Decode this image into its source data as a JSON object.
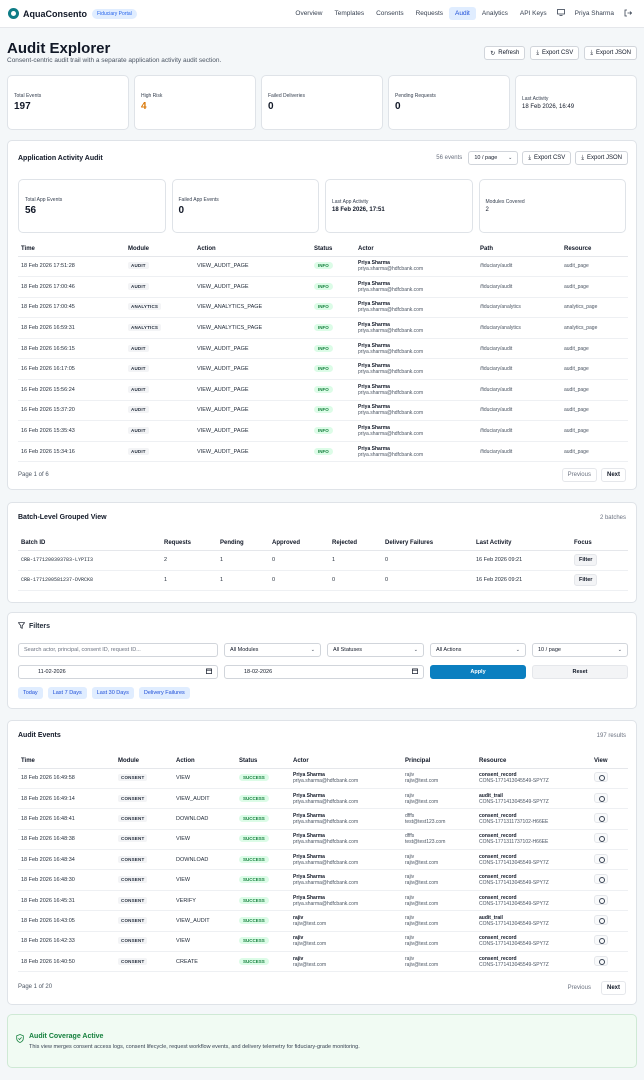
{
  "nav": {
    "brand": "AquaConsento",
    "portal_badge": "Fiduciary Portal",
    "links": [
      "Overview",
      "Templates",
      "Consents",
      "Requests",
      "Audit",
      "Analytics",
      "API Keys"
    ],
    "active": "Audit",
    "user": "Priya Sharma"
  },
  "header": {
    "title": "Audit Explorer",
    "subtitle": "Consent-centric audit trail with a separate application activity audit section.",
    "refresh": "Refresh",
    "export_csv": "Export CSV",
    "export_json": "Export JSON"
  },
  "stats": [
    {
      "label": "Total Events",
      "value": "197"
    },
    {
      "label": "High Risk",
      "value": "4"
    },
    {
      "label": "Failed Deliveries",
      "value": "0"
    },
    {
      "label": "Pending Requests",
      "value": "0"
    },
    {
      "label": "Last Activity",
      "value": "18 Feb 2026, 16:49"
    }
  ],
  "app_audit": {
    "title": "Application Activity Audit",
    "count": "56 events",
    "per_page": "10 / page",
    "export_csv": "Export CSV",
    "export_json": "Export JSON",
    "stats": [
      {
        "label": "Total App Events",
        "value": "56"
      },
      {
        "label": "Failed App Events",
        "value": "0"
      },
      {
        "label": "Last App Activity",
        "value": "18 Feb 2026, 17:51"
      },
      {
        "label": "Modules Covered",
        "value": "2"
      }
    ],
    "columns": [
      "Time",
      "Module",
      "Action",
      "Status",
      "Actor",
      "Path",
      "Resource"
    ],
    "rows": [
      {
        "time": "18 Feb 2026 17:51:28",
        "module": "AUDIT",
        "action": "VIEW_AUDIT_PAGE",
        "status": "INFO",
        "actor": "Priya Sharma",
        "email": "priya.sharma@hdfcbank.com",
        "path": "/fiduciary/audit",
        "resource": "audit_page"
      },
      {
        "time": "18 Feb 2026 17:00:46",
        "module": "AUDIT",
        "action": "VIEW_AUDIT_PAGE",
        "status": "INFO",
        "actor": "Priya Sharma",
        "email": "priya.sharma@hdfcbank.com",
        "path": "/fiduciary/audit",
        "resource": "audit_page"
      },
      {
        "time": "18 Feb 2026 17:00:45",
        "module": "ANALYTICS",
        "action": "VIEW_ANALYTICS_PAGE",
        "status": "INFO",
        "actor": "Priya Sharma",
        "email": "priya.sharma@hdfcbank.com",
        "path": "/fiduciary/analytics",
        "resource": "analytics_page"
      },
      {
        "time": "18 Feb 2026 16:59:31",
        "module": "ANALYTICS",
        "action": "VIEW_ANALYTICS_PAGE",
        "status": "INFO",
        "actor": "Priya Sharma",
        "email": "priya.sharma@hdfcbank.com",
        "path": "/fiduciary/analytics",
        "resource": "analytics_page"
      },
      {
        "time": "18 Feb 2026 16:56:15",
        "module": "AUDIT",
        "action": "VIEW_AUDIT_PAGE",
        "status": "INFO",
        "actor": "Priya Sharma",
        "email": "priya.sharma@hdfcbank.com",
        "path": "/fiduciary/audit",
        "resource": "audit_page"
      },
      {
        "time": "16 Feb 2026 16:17:05",
        "module": "AUDIT",
        "action": "VIEW_AUDIT_PAGE",
        "status": "INFO",
        "actor": "Priya Sharma",
        "email": "priya.sharma@hdfcbank.com",
        "path": "/fiduciary/audit",
        "resource": "audit_page"
      },
      {
        "time": "16 Feb 2026 15:56:24",
        "module": "AUDIT",
        "action": "VIEW_AUDIT_PAGE",
        "status": "INFO",
        "actor": "Priya Sharma",
        "email": "priya.sharma@hdfcbank.com",
        "path": "/fiduciary/audit",
        "resource": "audit_page"
      },
      {
        "time": "16 Feb 2026 15:37:20",
        "module": "AUDIT",
        "action": "VIEW_AUDIT_PAGE",
        "status": "INFO",
        "actor": "Priya Sharma",
        "email": "priya.sharma@hdfcbank.com",
        "path": "/fiduciary/audit",
        "resource": "audit_page"
      },
      {
        "time": "16 Feb 2026 15:35:43",
        "module": "AUDIT",
        "action": "VIEW_AUDIT_PAGE",
        "status": "INFO",
        "actor": "Priya Sharma",
        "email": "priya.sharma@hdfcbank.com",
        "path": "/fiduciary/audit",
        "resource": "audit_page"
      },
      {
        "time": "16 Feb 2026 15:34:16",
        "module": "AUDIT",
        "action": "VIEW_AUDIT_PAGE",
        "status": "INFO",
        "actor": "Priya Sharma",
        "email": "priya.sharma@hdfcbank.com",
        "path": "/fiduciary/audit",
        "resource": "audit_page"
      }
    ],
    "page_info": "Page 1 of 6",
    "previous": "Previous",
    "next": "Next"
  },
  "batch": {
    "title": "Batch-Level Grouped View",
    "count": "2 batches",
    "columns": [
      "Batch ID",
      "Requests",
      "Pending",
      "Approved",
      "Rejected",
      "Delivery Failures",
      "Last Activity",
      "Focus"
    ],
    "rows": [
      {
        "id": "CRB-1771200393783-LYPII3",
        "requests": "2",
        "pending": "1",
        "approved": "0",
        "rejected": "1",
        "failures": "0",
        "last": "16 Feb 2026 09:21",
        "focus": "Filter"
      },
      {
        "id": "CRB-1771200581237-DVRCK8",
        "requests": "1",
        "pending": "1",
        "approved": "0",
        "rejected": "0",
        "failures": "0",
        "last": "16 Feb 2026 09:21",
        "focus": "Filter"
      }
    ]
  },
  "filters": {
    "title": "Filters",
    "search_placeholder": "Search actor, principal, consent ID, request ID...",
    "modules": "All Modules",
    "statuses": "All Statuses",
    "actions": "All Actions",
    "per_page": "10 / page",
    "date_from": "11-02-2026",
    "date_to": "18-02-2026",
    "apply": "Apply",
    "reset": "Reset",
    "quick": [
      "Today",
      "Last 7 Days",
      "Last 30 Days",
      "Delivery Failures"
    ]
  },
  "events": {
    "title": "Audit Events",
    "count": "197 results",
    "columns": [
      "Time",
      "Module",
      "Action",
      "Status",
      "Actor",
      "Principal",
      "Resource",
      "View"
    ],
    "rows": [
      {
        "time": "18 Feb 2026 16:49:58",
        "module": "CONSENT",
        "action": "VIEW",
        "status": "SUCCESS",
        "actor": "Priya Sharma",
        "actor_email": "priya.sharma@hdfcbank.com",
        "principal": "rajiv",
        "principal_email": "rajiv@test.com",
        "resource": "consent_record",
        "resource_id": "CONS-1771413045549-SPY7Z"
      },
      {
        "time": "18 Feb 2026 16:49:14",
        "module": "CONSENT",
        "action": "VIEW_AUDIT",
        "status": "SUCCESS",
        "actor": "Priya Sharma",
        "actor_email": "priya.sharma@hdfcbank.com",
        "principal": "rajiv",
        "principal_email": "rajiv@test.com",
        "resource": "audit_trail",
        "resource_id": "CONS-1771413045549-SPY7Z"
      },
      {
        "time": "18 Feb 2026 16:48:41",
        "module": "CONSENT",
        "action": "DOWNLOAD",
        "status": "SUCCESS",
        "actor": "Priya Sharma",
        "actor_email": "priya.sharma@hdfcbank.com",
        "principal": "dfffs",
        "principal_email": "test@test123.com",
        "resource": "consent_record",
        "resource_id": "CONS-1771311737102-H66EE"
      },
      {
        "time": "18 Feb 2026 16:48:38",
        "module": "CONSENT",
        "action": "VIEW",
        "status": "SUCCESS",
        "actor": "Priya Sharma",
        "actor_email": "priya.sharma@hdfcbank.com",
        "principal": "dfffs",
        "principal_email": "test@test123.com",
        "resource": "consent_record",
        "resource_id": "CONS-1771311737102-H66EE"
      },
      {
        "time": "18 Feb 2026 16:48:34",
        "module": "CONSENT",
        "action": "DOWNLOAD",
        "status": "SUCCESS",
        "actor": "Priya Sharma",
        "actor_email": "priya.sharma@hdfcbank.com",
        "principal": "rajiv",
        "principal_email": "rajiv@test.com",
        "resource": "consent_record",
        "resource_id": "CONS-1771413045549-SPY7Z"
      },
      {
        "time": "18 Feb 2026 16:48:30",
        "module": "CONSENT",
        "action": "VIEW",
        "status": "SUCCESS",
        "actor": "Priya Sharma",
        "actor_email": "priya.sharma@hdfcbank.com",
        "principal": "rajiv",
        "principal_email": "rajiv@test.com",
        "resource": "consent_record",
        "resource_id": "CONS-1771413045549-SPY7Z"
      },
      {
        "time": "18 Feb 2026 16:45:31",
        "module": "CONSENT",
        "action": "VERIFY",
        "status": "SUCCESS",
        "actor": "Priya Sharma",
        "actor_email": "priya.sharma@hdfcbank.com",
        "principal": "rajiv",
        "principal_email": "rajiv@test.com",
        "resource": "consent_record",
        "resource_id": "CONS-1771413045549-SPY7Z"
      },
      {
        "time": "18 Feb 2026 16:43:05",
        "module": "CONSENT",
        "action": "VIEW_AUDIT",
        "status": "SUCCESS",
        "actor": "rajiv",
        "actor_email": "rajiv@test.com",
        "principal": "rajiv",
        "principal_email": "rajiv@test.com",
        "resource": "audit_trail",
        "resource_id": "CONS-1771413045549-SPY7Z"
      },
      {
        "time": "18 Feb 2026 16:42:33",
        "module": "CONSENT",
        "action": "VIEW",
        "status": "SUCCESS",
        "actor": "rajiv",
        "actor_email": "rajiv@test.com",
        "principal": "rajiv",
        "principal_email": "rajiv@test.com",
        "resource": "consent_record",
        "resource_id": "CONS-1771413045549-SPY7Z"
      },
      {
        "time": "18 Feb 2026 16:40:50",
        "module": "CONSENT",
        "action": "CREATE",
        "status": "SUCCESS",
        "actor": "rajiv",
        "actor_email": "rajiv@test.com",
        "principal": "rajiv",
        "principal_email": "rajiv@test.com",
        "resource": "consent_record",
        "resource_id": "CONS-1771413045549-SPY7Z"
      }
    ],
    "page_info": "Page 1 of 20",
    "previous": "Previous",
    "next": "Next"
  },
  "coverage": {
    "title": "Audit Coverage Active",
    "text": "This view merges consent access logs, consent lifecycle, request workflow events, and delivery telemetry for fiduciary-grade monitoring."
  },
  "colors": {
    "accent": "#0e7c86",
    "primary_button": "#0b7fc0",
    "success": "#15803d",
    "warning": "#d97706"
  }
}
